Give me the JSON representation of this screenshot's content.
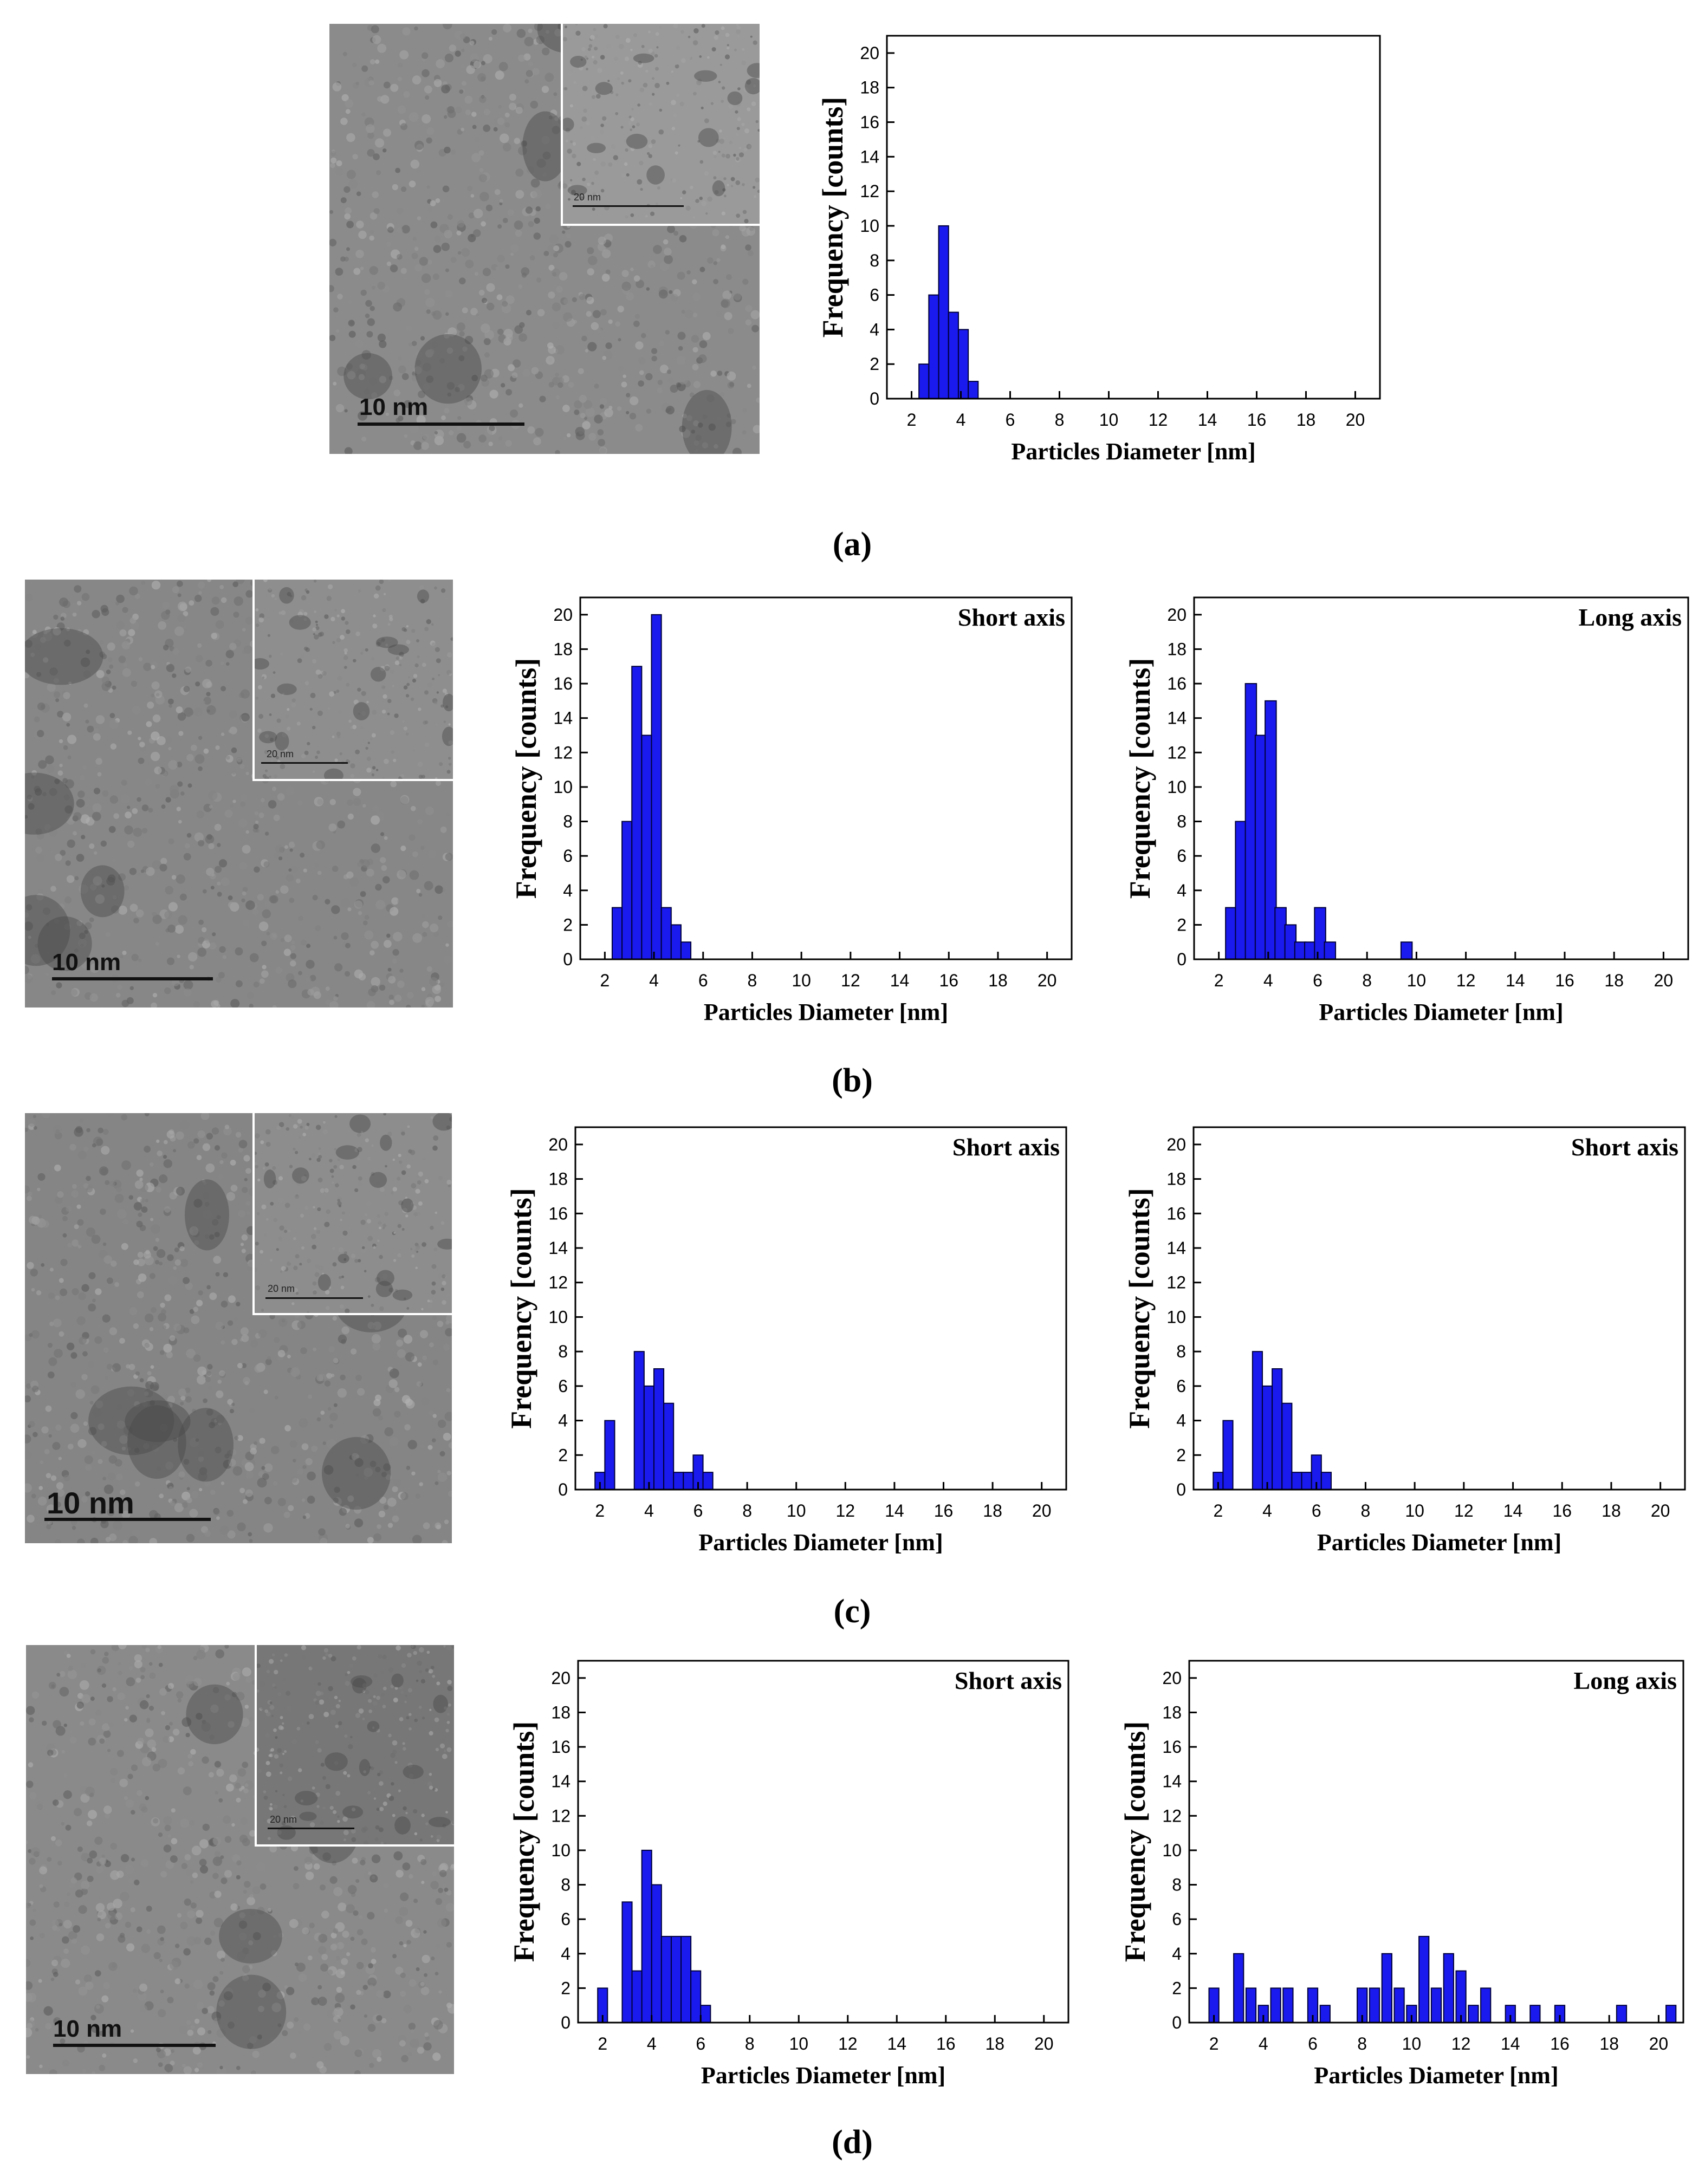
{
  "panels": [
    {
      "label": "(a)",
      "tem_scale": "10 nm",
      "inset_scale": "20 nm",
      "charts": [
        {
          "type": "bar",
          "annotation": "",
          "xlabel": "Particles Diameter [nm]",
          "ylabel": "Frequency [counts]",
          "xlim": [
            1,
            21
          ],
          "ylim": [
            0,
            21
          ],
          "xticks": [
            2,
            4,
            6,
            8,
            10,
            12,
            14,
            16,
            18,
            20
          ],
          "yticks": [
            0,
            2,
            4,
            6,
            8,
            10,
            12,
            14,
            16,
            18,
            20
          ],
          "bar_width": 0.4,
          "x": [
            2.5,
            2.9,
            3.3,
            3.7,
            4.1,
            4.5,
            4.9
          ],
          "values": [
            2,
            6,
            10,
            5,
            4,
            1,
            0
          ]
        }
      ]
    },
    {
      "label": "(b)",
      "tem_scale": "10 nm",
      "inset_scale": "20 nm",
      "charts": [
        {
          "type": "bar",
          "annotation": "Short axis",
          "xlabel": "Particles Diameter [nm]",
          "ylabel": "Frequency [counts]",
          "xlim": [
            1,
            21
          ],
          "ylim": [
            0,
            21
          ],
          "xticks": [
            2,
            4,
            6,
            8,
            10,
            12,
            14,
            16,
            18,
            20
          ],
          "yticks": [
            0,
            2,
            4,
            6,
            8,
            10,
            12,
            14,
            16,
            18,
            20
          ],
          "bar_width": 0.4,
          "x": [
            2.5,
            2.9,
            3.3,
            3.7,
            4.1,
            4.5,
            4.9,
            5.3,
            5.7
          ],
          "values": [
            3,
            8,
            17,
            13,
            20,
            3,
            2,
            1,
            0
          ]
        },
        {
          "type": "bar",
          "annotation": "Long axis",
          "xlabel": "Particles Diameter [nm]",
          "ylabel": "Frequency [counts]",
          "xlim": [
            1,
            21
          ],
          "ylim": [
            0,
            21
          ],
          "xticks": [
            2,
            4,
            6,
            8,
            10,
            12,
            14,
            16,
            18,
            20
          ],
          "yticks": [
            0,
            2,
            4,
            6,
            8,
            10,
            12,
            14,
            16,
            18,
            20
          ],
          "bar_width": 0.45,
          "x": [
            2.5,
            2.9,
            3.3,
            3.7,
            4.1,
            4.5,
            4.9,
            5.3,
            5.7,
            6.1,
            6.5,
            6.9,
            7.3,
            9.6
          ],
          "values": [
            3,
            8,
            16,
            13,
            15,
            3,
            2,
            1,
            1,
            3,
            1,
            0,
            0,
            1
          ]
        }
      ]
    },
    {
      "label": "(c)",
      "tem_scale": "10 nm",
      "inset_scale": "20 nm",
      "charts": [
        {
          "type": "bar",
          "annotation": "Short axis",
          "xlabel": "Particles Diameter [nm]",
          "ylabel": "Frequency [counts]",
          "xlim": [
            1,
            21
          ],
          "ylim": [
            0,
            21
          ],
          "xticks": [
            2,
            4,
            6,
            8,
            10,
            12,
            14,
            16,
            18,
            20
          ],
          "yticks": [
            0,
            2,
            4,
            6,
            8,
            10,
            12,
            14,
            16,
            18,
            20
          ],
          "bar_width": 0.4,
          "x": [
            2.0,
            2.4,
            3.6,
            4.0,
            4.4,
            4.8,
            5.2,
            5.6,
            6.0,
            6.4
          ],
          "values": [
            1,
            4,
            8,
            6,
            7,
            5,
            1,
            1,
            2,
            1
          ]
        },
        {
          "type": "bar",
          "annotation": "Short axis",
          "xlabel": "Particles Diameter [nm]",
          "ylabel": "Frequency [counts]",
          "xlim": [
            1,
            21
          ],
          "ylim": [
            0,
            21
          ],
          "xticks": [
            2,
            4,
            6,
            8,
            10,
            12,
            14,
            16,
            18,
            20
          ],
          "yticks": [
            0,
            2,
            4,
            6,
            8,
            10,
            12,
            14,
            16,
            18,
            20
          ],
          "bar_width": 0.4,
          "x": [
            2.0,
            2.4,
            3.6,
            4.0,
            4.4,
            4.8,
            5.2,
            5.6,
            6.0,
            6.4
          ],
          "values": [
            1,
            4,
            8,
            6,
            7,
            5,
            1,
            1,
            2,
            1
          ]
        }
      ]
    },
    {
      "label": "(d)",
      "tem_scale": "10 nm",
      "inset_scale": "20 nm",
      "charts": [
        {
          "type": "bar",
          "annotation": "Short axis",
          "xlabel": "Particles Diameter [nm]",
          "ylabel": "Frequency [counts]",
          "xlim": [
            1,
            21
          ],
          "ylim": [
            0,
            21
          ],
          "xticks": [
            2,
            4,
            6,
            8,
            10,
            12,
            14,
            16,
            18,
            20
          ],
          "yticks": [
            0,
            2,
            4,
            6,
            8,
            10,
            12,
            14,
            16,
            18,
            20
          ],
          "bar_width": 0.4,
          "x": [
            2.0,
            3.0,
            3.4,
            3.8,
            4.2,
            4.6,
            5.0,
            5.4,
            5.8,
            6.2,
            6.6
          ],
          "values": [
            2,
            7,
            3,
            10,
            8,
            5,
            5,
            5,
            3,
            1,
            0
          ]
        },
        {
          "type": "bar",
          "annotation": "Long axis",
          "xlabel": "Particles Diameter [nm]",
          "ylabel": "Frequency [counts]",
          "xlim": [
            1,
            21
          ],
          "ylim": [
            0,
            21
          ],
          "xticks": [
            2,
            4,
            6,
            8,
            10,
            12,
            14,
            16,
            18,
            20
          ],
          "yticks": [
            0,
            2,
            4,
            6,
            8,
            10,
            12,
            14,
            16,
            18,
            20
          ],
          "bar_width": 0.4,
          "x": [
            2.0,
            3.0,
            3.5,
            4.0,
            4.5,
            5.0,
            6.0,
            6.5,
            8.0,
            8.5,
            9.0,
            9.5,
            10.0,
            10.5,
            11.0,
            11.5,
            12.0,
            12.5,
            13.0,
            14.0,
            15.0,
            16.0,
            18.5,
            20.5
          ],
          "values": [
            2,
            4,
            2,
            1,
            2,
            2,
            2,
            1,
            2,
            2,
            4,
            2,
            1,
            5,
            2,
            4,
            3,
            1,
            2,
            1,
            1,
            1,
            1,
            1
          ]
        }
      ]
    }
  ],
  "colors": {
    "bar": "#1a1aee",
    "bar_edge": "#00003a",
    "axis": "#000000"
  }
}
